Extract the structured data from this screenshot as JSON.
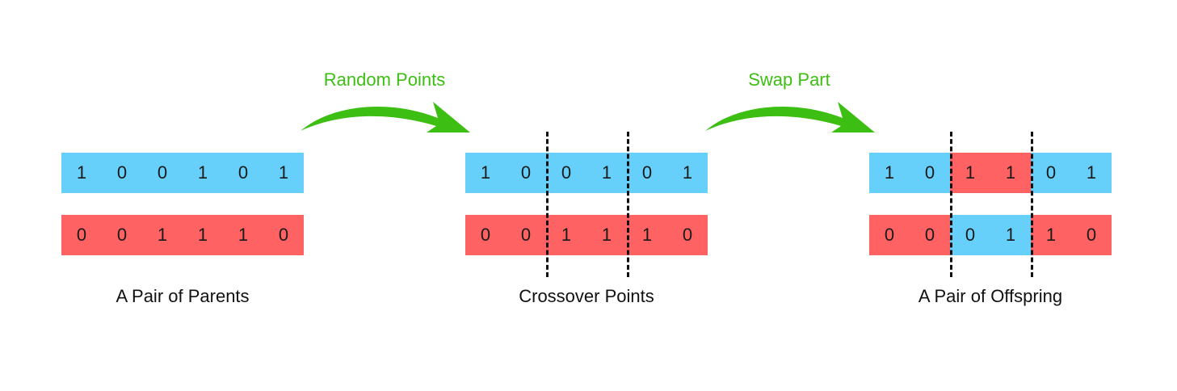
{
  "colors": {
    "parent_a": "#66d0fb",
    "parent_b": "#ff6262",
    "arrow": "#3cbf12",
    "cut_line": "#111111"
  },
  "stages": [
    {
      "caption": "A Pair of Parents",
      "rows": [
        {
          "genes": [
            "1",
            "0",
            "0",
            "1",
            "0",
            "1"
          ],
          "colors": [
            "blue",
            "blue",
            "blue",
            "blue",
            "blue",
            "blue"
          ]
        },
        {
          "genes": [
            "0",
            "0",
            "1",
            "1",
            "1",
            "0"
          ],
          "colors": [
            "red",
            "red",
            "red",
            "red",
            "red",
            "red"
          ]
        }
      ],
      "cut_points": []
    },
    {
      "caption": "Crossover Points",
      "rows": [
        {
          "genes": [
            "1",
            "0",
            "0",
            "1",
            "0",
            "1"
          ],
          "colors": [
            "blue",
            "blue",
            "blue",
            "blue",
            "blue",
            "blue"
          ]
        },
        {
          "genes": [
            "0",
            "0",
            "1",
            "1",
            "1",
            "0"
          ],
          "colors": [
            "red",
            "red",
            "red",
            "red",
            "red",
            "red"
          ]
        }
      ],
      "cut_points": [
        2,
        4
      ]
    },
    {
      "caption": "A Pair of Offspring",
      "rows": [
        {
          "genes": [
            "1",
            "0",
            "1",
            "1",
            "0",
            "1"
          ],
          "colors": [
            "blue",
            "blue",
            "red",
            "red",
            "blue",
            "blue"
          ]
        },
        {
          "genes": [
            "0",
            "0",
            "0",
            "1",
            "1",
            "0"
          ],
          "colors": [
            "red",
            "red",
            "blue",
            "blue",
            "red",
            "red"
          ]
        }
      ],
      "cut_points": [
        2,
        4
      ]
    }
  ],
  "arrows": [
    {
      "label": "Random Points",
      "icon": "curved-arrow-icon"
    },
    {
      "label": "Swap Part",
      "icon": "curved-arrow-icon"
    }
  ]
}
